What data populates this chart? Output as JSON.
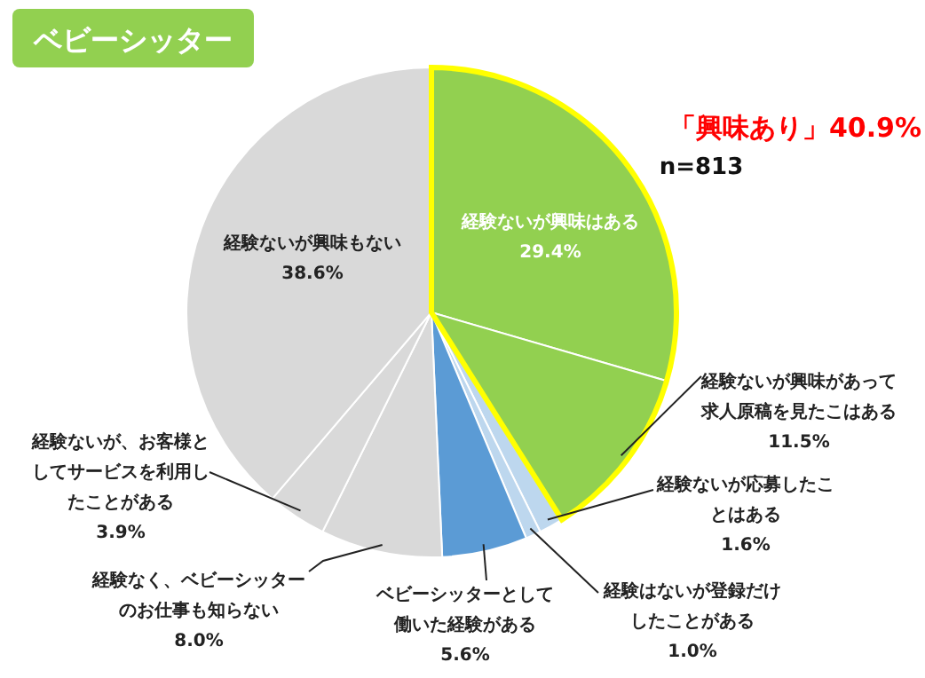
{
  "chart_data": {
    "type": "pie",
    "title": "ベビーシッター",
    "categories": [
      "経験ないが興味はある",
      "経験ないが興味があって求人原稿を見たこはある",
      "経験ないが応募したことはある",
      "経験はないが登録だけしたことがある",
      "ベビーシッターとして働いた経験がある",
      "経験なく、ベビーシッターのお仕事も知らない",
      "経験ないが、お客様としてサービスを利用したことがある",
      "経験ないが興味もない"
    ],
    "values": [
      29.4,
      11.5,
      1.6,
      1.0,
      5.6,
      8.0,
      3.9,
      38.6
    ],
    "colors": [
      "#92d050",
      "#92d050",
      "#bdd7ee",
      "#bdd7ee",
      "#5b9bd5",
      "#d9d9d9",
      "#d9d9d9",
      "#d9d9d9"
    ],
    "value_labels": [
      "29.4%",
      "11.5%",
      "1.6%",
      "1.0%",
      "5.6%",
      "8.0%",
      "3.9%",
      "38.6%"
    ],
    "annotations": [
      "「興味あり」40.9%",
      "n=813"
    ]
  }
}
